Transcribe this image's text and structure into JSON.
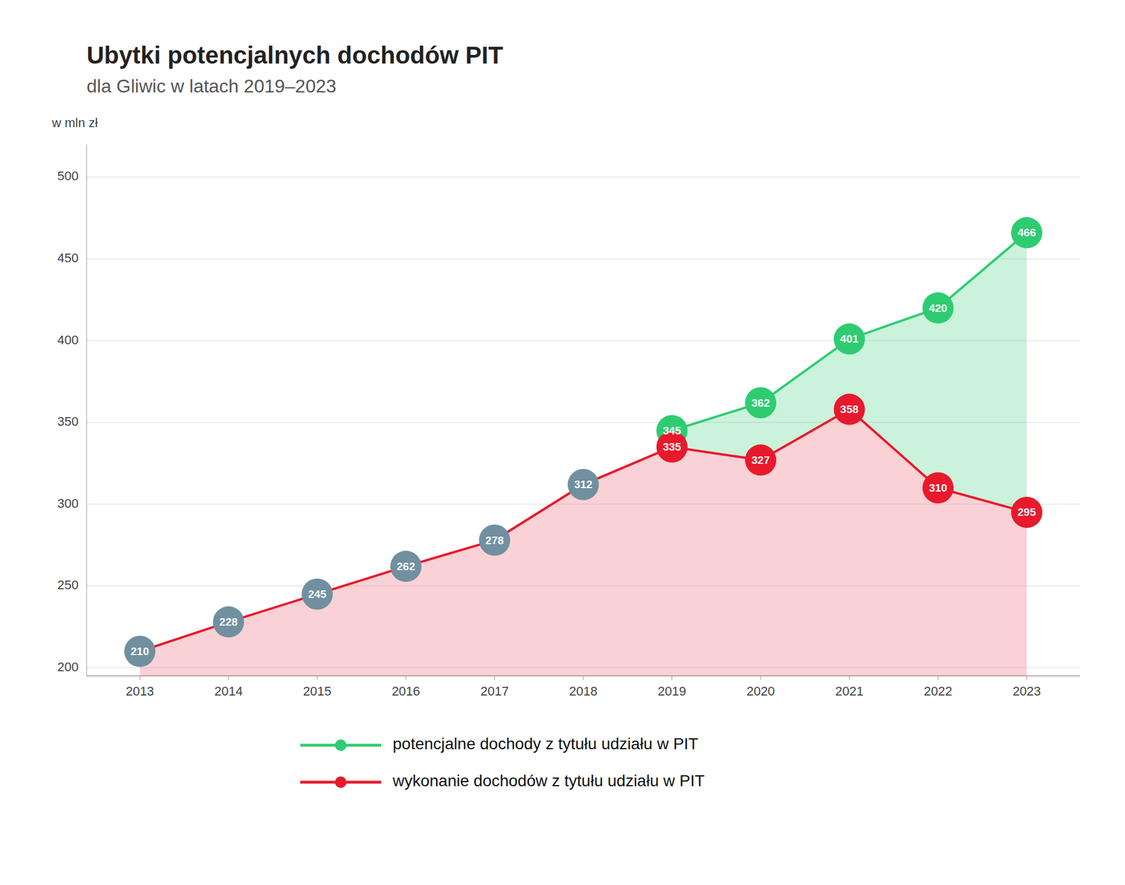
{
  "chart_data": {
    "type": "line",
    "title": "Ubytki potencjalnych dochodów PIT",
    "subtitle": "dla Gliwic w latach 2019–2023",
    "y_label": "w mln zł",
    "x": [
      2013,
      2014,
      2015,
      2016,
      2017,
      2018,
      2019,
      2020,
      2021,
      2022,
      2023
    ],
    "xlim": [
      2012.4,
      2023.6
    ],
    "xticks": [
      2013,
      2014,
      2015,
      2016,
      2017,
      2018,
      2019,
      2020,
      2021,
      2022,
      2023
    ],
    "ylim": [
      195,
      520
    ],
    "yticks": [
      200,
      250,
      300,
      350,
      400,
      450,
      500
    ],
    "grid": true,
    "data_labels": true,
    "legend": "bottom",
    "series": [
      {
        "name": "potencjalne dochody z tytułu udziału w PIT",
        "color": "#2ecc71",
        "marker": "circle",
        "values": [
          null,
          null,
          null,
          null,
          null,
          null,
          345,
          362,
          401,
          420,
          466
        ]
      },
      {
        "name": "wykonanie dochodów z tytułu udziału w PIT",
        "color": "#e8192c",
        "marker": "circle",
        "colors": [
          "#7090a0",
          "#7090a0",
          "#7090a0",
          "#7090a0",
          "#7090a0",
          "#7090a0",
          "#e8192c",
          "#e8192c",
          "#e8192c",
          "#e8192c",
          "#e8192c"
        ],
        "values": [
          210,
          228,
          245,
          262,
          278,
          312,
          335,
          327,
          358,
          310,
          295
        ]
      }
    ]
  }
}
